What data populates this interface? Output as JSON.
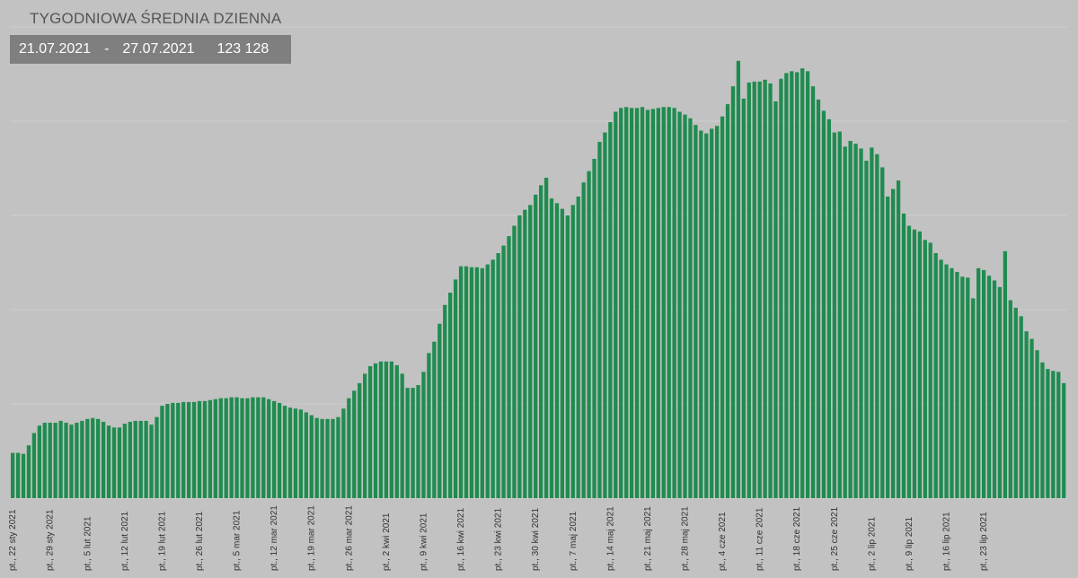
{
  "title": "TYGODNIOWA ŚREDNIA DZIENNA",
  "info": {
    "date_from": "21.07.2021",
    "separator": "-",
    "date_to": "27.07.2021",
    "value": "123 128"
  },
  "colors": {
    "background": "#c2c2c2",
    "bar": "#1f8c4f",
    "info_box": "#7f7f7f"
  },
  "chart_data": {
    "type": "bar",
    "title": "TYGODNIOWA ŚREDNIA DZIENNA",
    "start_date": "2021-01-22",
    "end_date": "2021-07-27",
    "ylim": [
      0,
      500
    ],
    "grid": true,
    "tick_labels": [
      "pt., 22 sty 2021",
      "pt., 29 sty 2021",
      "pt., 5 lut 2021",
      "pt., 12 lut 2021",
      "pt., 19 lut 2021",
      "pt., 26 lut 2021",
      "pt., 5 mar 2021",
      "pt., 12 mar 2021",
      "pt., 19 mar 2021",
      "pt., 26 mar 2021",
      "pt., 2 kwi 2021",
      "pt., 9 kwi 2021",
      "pt., 16 kwi 2021",
      "pt., 23 kwi 2021",
      "pt., 30 kwi 2021",
      "pt., 7 maj 2021",
      "pt., 14 maj 2021",
      "pt., 21 maj 2021",
      "pt., 28 maj 2021",
      "pt., 4 cze 2021",
      "pt., 11 cze 2021",
      "pt., 18 cze 2021",
      "pt., 25 cze 2021",
      "pt., 2 lip 2021",
      "pt., 9 lip 2021",
      "pt., 16 lip 2021",
      "pt., 23 lip 2021"
    ],
    "values": [
      48,
      48,
      47,
      56,
      69,
      77,
      80,
      80,
      80,
      82,
      80,
      78,
      80,
      82,
      84,
      85,
      84,
      81,
      77,
      75,
      75,
      79,
      81,
      82,
      82,
      82,
      78,
      86,
      98,
      100,
      101,
      101,
      102,
      102,
      102,
      103,
      103,
      104,
      105,
      106,
      106,
      107,
      107,
      106,
      106,
      107,
      107,
      107,
      105,
      103,
      101,
      98,
      96,
      95,
      94,
      91,
      88,
      85,
      84,
      84,
      84,
      86,
      95,
      106,
      114,
      122,
      132,
      140,
      143,
      145,
      145,
      145,
      141,
      132,
      117,
      117,
      120,
      134,
      154,
      166,
      185,
      205,
      218,
      232,
      246,
      246,
      245,
      245,
      244,
      248,
      253,
      260,
      268,
      278,
      289,
      300,
      306,
      311,
      322,
      332,
      340,
      318,
      313,
      307,
      300,
      311,
      320,
      335,
      347,
      360,
      378,
      388,
      399,
      410,
      414,
      415,
      414,
      414,
      415,
      412,
      413,
      414,
      415,
      415,
      414,
      410,
      407,
      403,
      396,
      390,
      387,
      392,
      395,
      405,
      418,
      437,
      464,
      424,
      441,
      442,
      442,
      444,
      440,
      421,
      445,
      451,
      453,
      452,
      456,
      453,
      437,
      423,
      411,
      402,
      388,
      389,
      373,
      379,
      376,
      371,
      358,
      372,
      365,
      351,
      320,
      328,
      337,
      302,
      289,
      285,
      283,
      274,
      271,
      260,
      253,
      248,
      244,
      240,
      235,
      234,
      212,
      244,
      242,
      236,
      231,
      224,
      262,
      210,
      202,
      193,
      177,
      169,
      157,
      144,
      137,
      135,
      134,
      122
    ]
  }
}
